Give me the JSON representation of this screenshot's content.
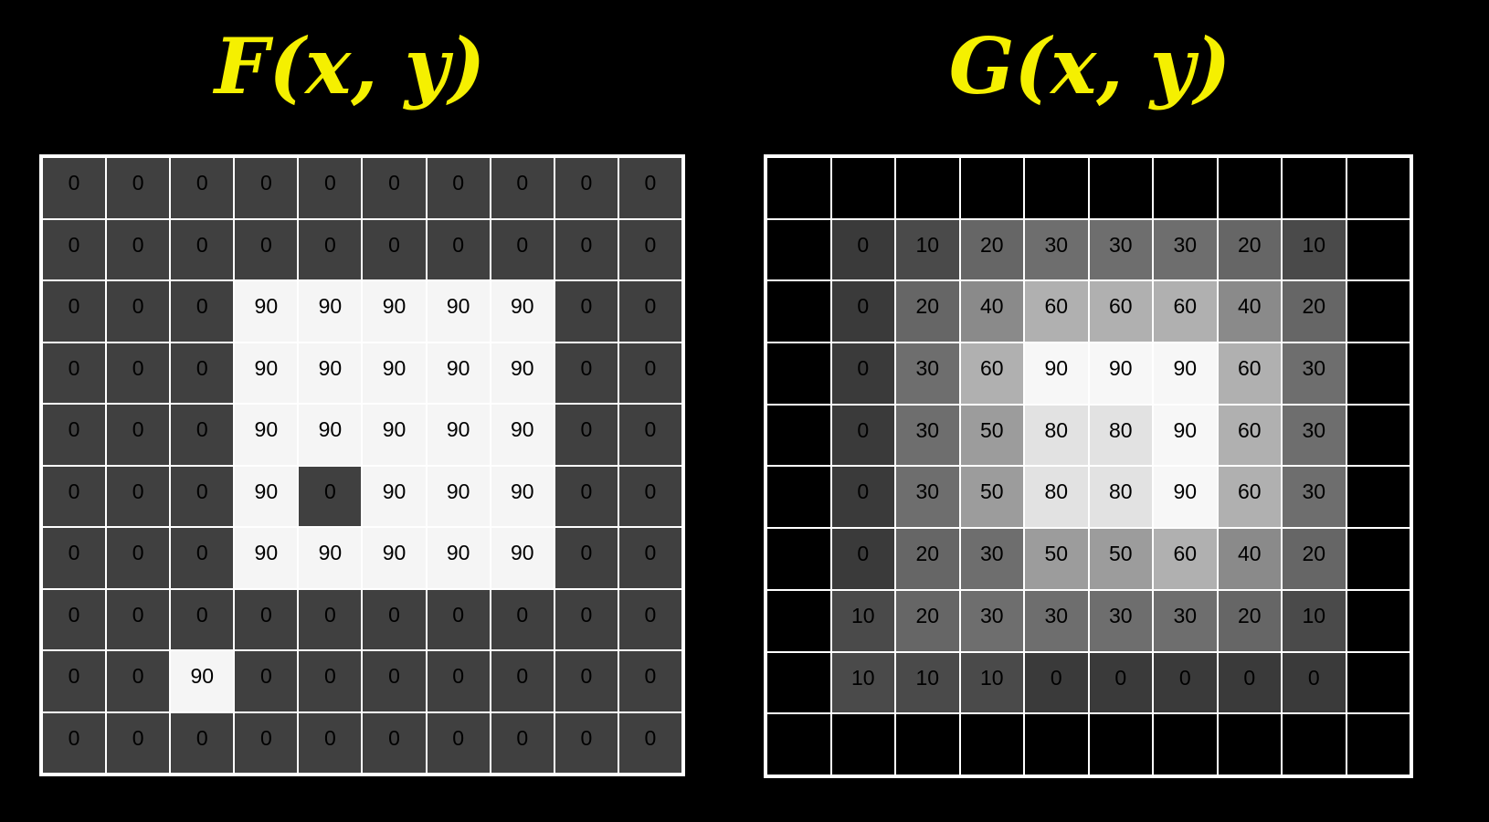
{
  "titles": {
    "f": "F(x, y)",
    "g": "G(x, y)"
  },
  "colors": {
    "background": "#000000",
    "title": "#f5f000",
    "gridline": "#ffffff",
    "text_dark": "#000000",
    "text_light": "#111111"
  },
  "grid_f": {
    "rows": [
      [
        "0",
        "0",
        "0",
        "0",
        "0",
        "0",
        "0",
        "0",
        "0",
        "0"
      ],
      [
        "0",
        "0",
        "0",
        "0",
        "0",
        "0",
        "0",
        "0",
        "0",
        "0"
      ],
      [
        "0",
        "0",
        "0",
        "90",
        "90",
        "90",
        "90",
        "90",
        "0",
        "0"
      ],
      [
        "0",
        "0",
        "0",
        "90",
        "90",
        "90",
        "90",
        "90",
        "0",
        "0"
      ],
      [
        "0",
        "0",
        "0",
        "90",
        "90",
        "90",
        "90",
        "90",
        "0",
        "0"
      ],
      [
        "0",
        "0",
        "0",
        "90",
        "0",
        "90",
        "90",
        "90",
        "0",
        "0"
      ],
      [
        "0",
        "0",
        "0",
        "90",
        "90",
        "90",
        "90",
        "90",
        "0",
        "0"
      ],
      [
        "0",
        "0",
        "0",
        "0",
        "0",
        "0",
        "0",
        "0",
        "0",
        "0"
      ],
      [
        "0",
        "0",
        "90",
        "0",
        "0",
        "0",
        "0",
        "0",
        "0",
        "0"
      ],
      [
        "0",
        "0",
        "0",
        "0",
        "0",
        "0",
        "0",
        "0",
        "0",
        "0"
      ]
    ]
  },
  "grid_g": {
    "rows": [
      [
        "",
        "",
        "",
        "",
        "",
        "",
        "",
        "",
        "",
        ""
      ],
      [
        "",
        "0",
        "10",
        "20",
        "30",
        "30",
        "30",
        "20",
        "10",
        ""
      ],
      [
        "",
        "0",
        "20",
        "40",
        "60",
        "60",
        "60",
        "40",
        "20",
        ""
      ],
      [
        "",
        "0",
        "30",
        "60",
        "90",
        "90",
        "90",
        "60",
        "30",
        ""
      ],
      [
        "",
        "0",
        "30",
        "50",
        "80",
        "80",
        "90",
        "60",
        "30",
        ""
      ],
      [
        "",
        "0",
        "30",
        "50",
        "80",
        "80",
        "90",
        "60",
        "30",
        ""
      ],
      [
        "",
        "0",
        "20",
        "30",
        "50",
        "50",
        "60",
        "40",
        "20",
        ""
      ],
      [
        "",
        "10",
        "20",
        "30",
        "30",
        "30",
        "30",
        "20",
        "10",
        ""
      ],
      [
        "",
        "10",
        "10",
        "10",
        "0",
        "0",
        "0",
        "0",
        "0",
        ""
      ],
      [
        "",
        "",
        "",
        "",
        "",
        "",
        "",
        "",
        "",
        ""
      ]
    ]
  }
}
